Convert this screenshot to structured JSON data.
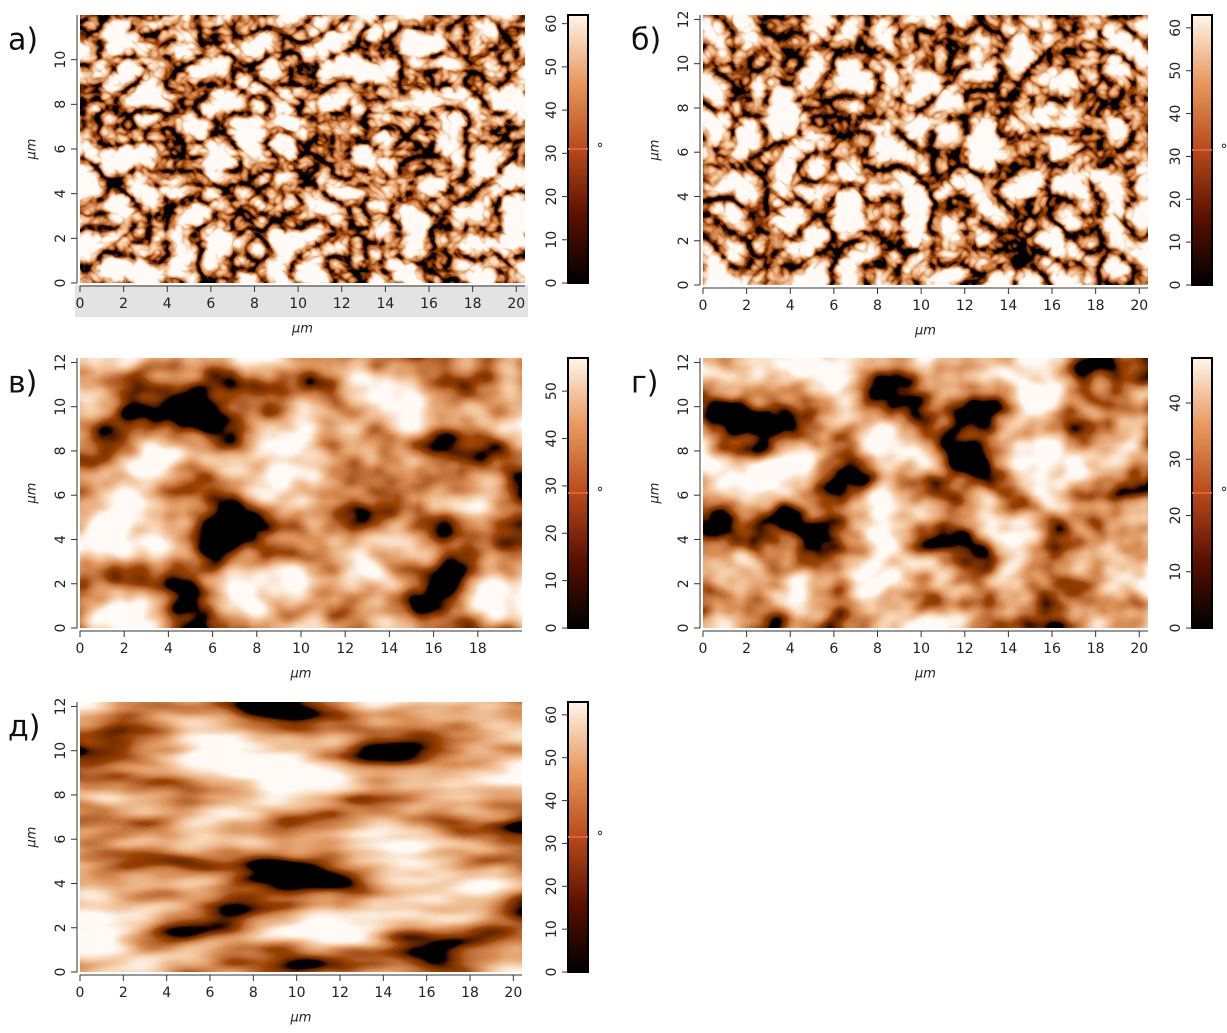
{
  "chart_data": [
    {
      "type": "image",
      "label": "а)",
      "xlabel": "μm",
      "ylabel": "μm",
      "xlim": [
        0,
        20.4
      ],
      "xticks": [
        0,
        2,
        4,
        6,
        8,
        10,
        12,
        14,
        16,
        18,
        20
      ],
      "ylim": [
        0,
        12
      ],
      "yticks": [
        0,
        2,
        4,
        6,
        8,
        10
      ],
      "clim": [
        0,
        62
      ],
      "cticks": [
        0,
        10,
        20,
        30,
        40,
        50,
        60
      ],
      "cunit": "°"
    },
    {
      "type": "image",
      "label": "б)",
      "xlabel": "μm",
      "ylabel": "μm",
      "xlim": [
        0,
        20.4
      ],
      "xticks": [
        0,
        2,
        4,
        6,
        8,
        10,
        12,
        14,
        16,
        18,
        20
      ],
      "ylim": [
        0,
        12.2
      ],
      "yticks": [
        0,
        2,
        4,
        6,
        8,
        10,
        12
      ],
      "clim": [
        0,
        63
      ],
      "cticks": [
        0,
        10,
        20,
        30,
        40,
        50,
        60
      ],
      "cunit": "°"
    },
    {
      "type": "image",
      "label": "в)",
      "xlabel": "μm",
      "ylabel": "μm",
      "xlim": [
        0,
        20
      ],
      "xticks": [
        0,
        2,
        4,
        6,
        8,
        10,
        12,
        14,
        16,
        18
      ],
      "ylim": [
        0,
        12.2
      ],
      "yticks": [
        0,
        2,
        4,
        6,
        8,
        10,
        12
      ],
      "clim": [
        0,
        57
      ],
      "cticks": [
        0,
        10,
        20,
        30,
        40,
        50
      ],
      "cunit": "°"
    },
    {
      "type": "image",
      "label": "г)",
      "xlabel": "μm",
      "ylabel": "μm",
      "xlim": [
        0,
        20.4
      ],
      "xticks": [
        0,
        2,
        4,
        6,
        8,
        10,
        12,
        14,
        16,
        18,
        20
      ],
      "ylim": [
        0,
        12.2
      ],
      "yticks": [
        0,
        2,
        4,
        6,
        8,
        10,
        12
      ],
      "clim": [
        0,
        48
      ],
      "cticks": [
        0,
        10,
        20,
        30,
        40
      ],
      "cunit": "°"
    },
    {
      "type": "image",
      "label": "д)",
      "xlabel": "μm",
      "ylabel": "μm",
      "xlim": [
        0,
        20.4
      ],
      "xticks": [
        0,
        2,
        4,
        6,
        8,
        10,
        12,
        14,
        16,
        18,
        20
      ],
      "ylim": [
        0,
        12.2
      ],
      "yticks": [
        0,
        2,
        4,
        6,
        8,
        10,
        12
      ],
      "clim": [
        0,
        63
      ],
      "cticks": [
        0,
        10,
        20,
        30,
        40,
        50,
        60
      ],
      "cunit": "°"
    }
  ]
}
